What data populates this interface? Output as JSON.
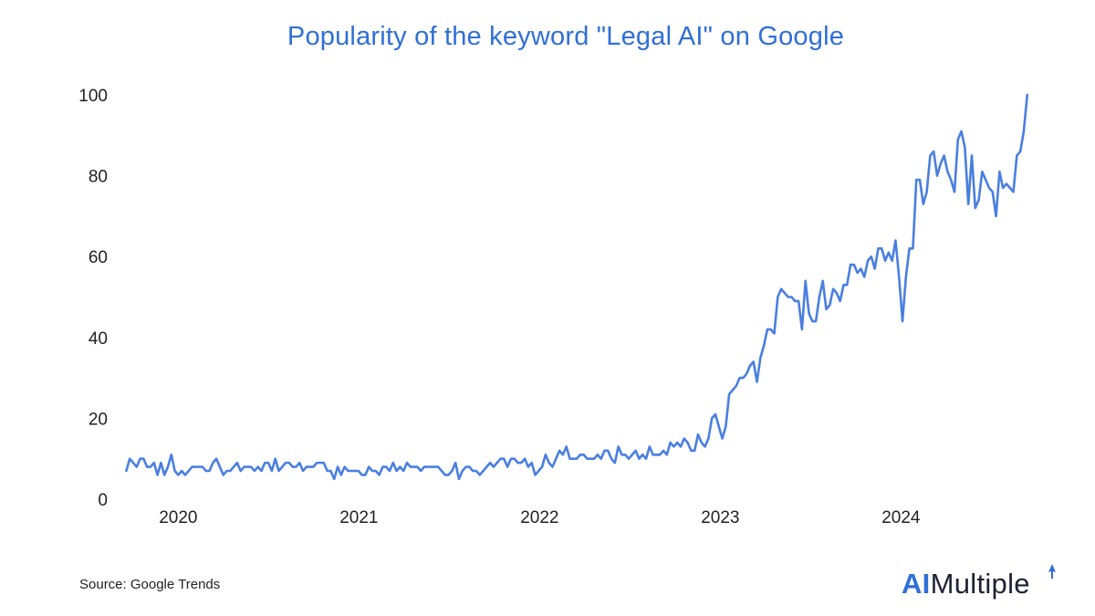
{
  "chart_data": {
    "type": "line",
    "title": "Popularity of the keyword \"Legal AI\" on Google",
    "xlabel": "",
    "ylabel": "",
    "ylim": [
      0,
      100
    ],
    "yticks": [
      0,
      20,
      40,
      60,
      80,
      100
    ],
    "ytick_labels": [
      "0",
      "20",
      "40",
      "60",
      "80",
      "100"
    ],
    "xticks": [
      2020,
      2021,
      2022,
      2023,
      2024
    ],
    "xtick_labels": [
      "2020",
      "2021",
      "2022",
      "2023",
      "2024"
    ],
    "xlim": [
      2019.69,
      2024.67
    ],
    "grid": false,
    "legend": "none",
    "line_color": "#4a7fe0",
    "series": [
      {
        "name": "Legal AI",
        "x_start": 2019.692,
        "x_step": 0.01918,
        "values": [
          7,
          10,
          9,
          8,
          10,
          10,
          8,
          8,
          9,
          6,
          9,
          6,
          8,
          11,
          7,
          6,
          7,
          6,
          7,
          8,
          8,
          8,
          8,
          7,
          7,
          9,
          10,
          8,
          6,
          7,
          7,
          8,
          9,
          7,
          8,
          8,
          8,
          7,
          8,
          7,
          9,
          9,
          7,
          10,
          7,
          8,
          9,
          9,
          8,
          8,
          9,
          7,
          8,
          8,
          8,
          9,
          9,
          9,
          7,
          7,
          5,
          8,
          6,
          8,
          7,
          7,
          7,
          7,
          6,
          6,
          8,
          7,
          7,
          6,
          8,
          8,
          7,
          9,
          7,
          8,
          7,
          9,
          8,
          8,
          8,
          7,
          8,
          8,
          8,
          8,
          8,
          7,
          6,
          6,
          7,
          9,
          5,
          7,
          8,
          8,
          7,
          7,
          6,
          7,
          8,
          9,
          8,
          9,
          10,
          10,
          8,
          10,
          10,
          9,
          9,
          10,
          8,
          9,
          6,
          7,
          8,
          11,
          9,
          8,
          10,
          12,
          11,
          13,
          10,
          10,
          10,
          11,
          11,
          10,
          10,
          10,
          11,
          10,
          12,
          12,
          10,
          9,
          13,
          11,
          11,
          10,
          11,
          12,
          10,
          11,
          10,
          13,
          11,
          11,
          11,
          12,
          11,
          14,
          13,
          14,
          13,
          15,
          14,
          12,
          12,
          16,
          14,
          13,
          15,
          20,
          21,
          18,
          15,
          18,
          26,
          27,
          28,
          30,
          30,
          31,
          33,
          34,
          29,
          35,
          38,
          42,
          42,
          41,
          50,
          52,
          51,
          50,
          50,
          49,
          49,
          42,
          54,
          46,
          44,
          44,
          50,
          54,
          47,
          48,
          52,
          51,
          49,
          53,
          53,
          58,
          58,
          56,
          57,
          55,
          59,
          60,
          57,
          62,
          62,
          59,
          61,
          59,
          64,
          55,
          44,
          55,
          62,
          62,
          79,
          79,
          73,
          76,
          85,
          86,
          80,
          83,
          85,
          81,
          79,
          76,
          89,
          91,
          87,
          73,
          85,
          72,
          74,
          81,
          79,
          77,
          76,
          70,
          81,
          77,
          78,
          77,
          76,
          85,
          86,
          91,
          100
        ]
      }
    ]
  },
  "footer": {
    "source": "Source: Google Trends",
    "brand_ai": "AI",
    "brand_rest": "Multiple"
  }
}
